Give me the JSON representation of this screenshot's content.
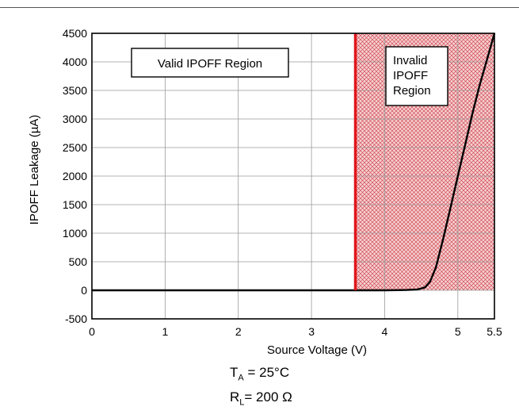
{
  "chart_data": {
    "type": "line",
    "title": "",
    "xlabel": "Source Voltage (V)",
    "ylabel": "IPOFF Leakage (µA)",
    "xlim": [
      0,
      5.5
    ],
    "ylim": [
      -500,
      4500
    ],
    "x_ticks": [
      0,
      1,
      2,
      3,
      4,
      5,
      5.5
    ],
    "x_tick_labels": [
      "0",
      "1",
      "2",
      "3",
      "4",
      "5",
      "5.5"
    ],
    "y_ticks": [
      -500,
      0,
      500,
      1000,
      1500,
      2000,
      2500,
      3000,
      3500,
      4000,
      4500
    ],
    "y_tick_labels": [
      "-500",
      "0",
      "500",
      "1000",
      "1500",
      "2000",
      "2500",
      "3000",
      "3500",
      "4000",
      "4500"
    ],
    "grid": true,
    "series": [
      {
        "x": [
          0,
          1,
          2,
          3,
          3.6,
          4.0,
          4.3,
          4.45,
          4.55,
          4.62,
          4.7,
          4.8,
          4.9,
          5.0,
          5.1,
          5.2,
          5.3,
          5.4,
          5.5
        ],
        "y": [
          0,
          0,
          0,
          0,
          0,
          0,
          5,
          15,
          50,
          150,
          400,
          900,
          1450,
          2000,
          2550,
          3100,
          3600,
          4050,
          4500
        ],
        "color": "#000000"
      }
    ],
    "threshold": {
      "x": 3.6,
      "color": "#e0161b"
    },
    "invalid_region": {
      "x_start": 3.6,
      "x_end": 5.5,
      "y_start": 0,
      "y_end": 4500,
      "color": "#e0161b"
    },
    "annotations": {
      "valid": {
        "text": "Valid IPOFF Region"
      },
      "invalid": {
        "lines": [
          "Invalid",
          "IPOFF",
          "Region"
        ]
      }
    }
  },
  "conditions": {
    "ta_base": "T",
    "ta_sub": "A",
    "ta_rest": " = 25°C",
    "rl_base": "R",
    "rl_sub": "L",
    "rl_rest": "= 200 Ω"
  }
}
